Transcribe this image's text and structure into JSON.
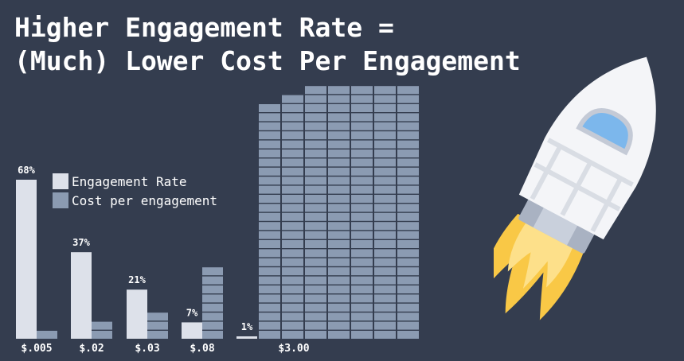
{
  "title": {
    "line1": "Higher Engagement Rate =",
    "line2": "(Much) Lower Cost Per Engagement"
  },
  "legend": {
    "engagement_label": "Engagement Rate",
    "cost_label": "Cost per engagement"
  },
  "colors": {
    "background": "#343d4f",
    "engagement": "#dde1ea",
    "cost": "#8b9bb2",
    "text": "#ffffff"
  },
  "chart_data": {
    "type": "bar",
    "categories": [
      "$.005",
      "$.02",
      "$.03",
      "$.08",
      "$3.00"
    ],
    "series": [
      {
        "name": "Engagement Rate",
        "values": [
          68,
          37,
          21,
          7,
          1
        ],
        "labels": [
          "68%",
          "37%",
          "21%",
          "7%",
          "1%"
        ]
      },
      {
        "name": "Cost per engagement",
        "values": [
          0.005,
          0.02,
          0.03,
          0.08,
          3.0
        ]
      }
    ],
    "title": "Higher Engagement Rate = (Much) Lower Cost Per Engagement",
    "xlabel": "",
    "ylabel": "",
    "legend_position": "top-left",
    "grid": false
  }
}
